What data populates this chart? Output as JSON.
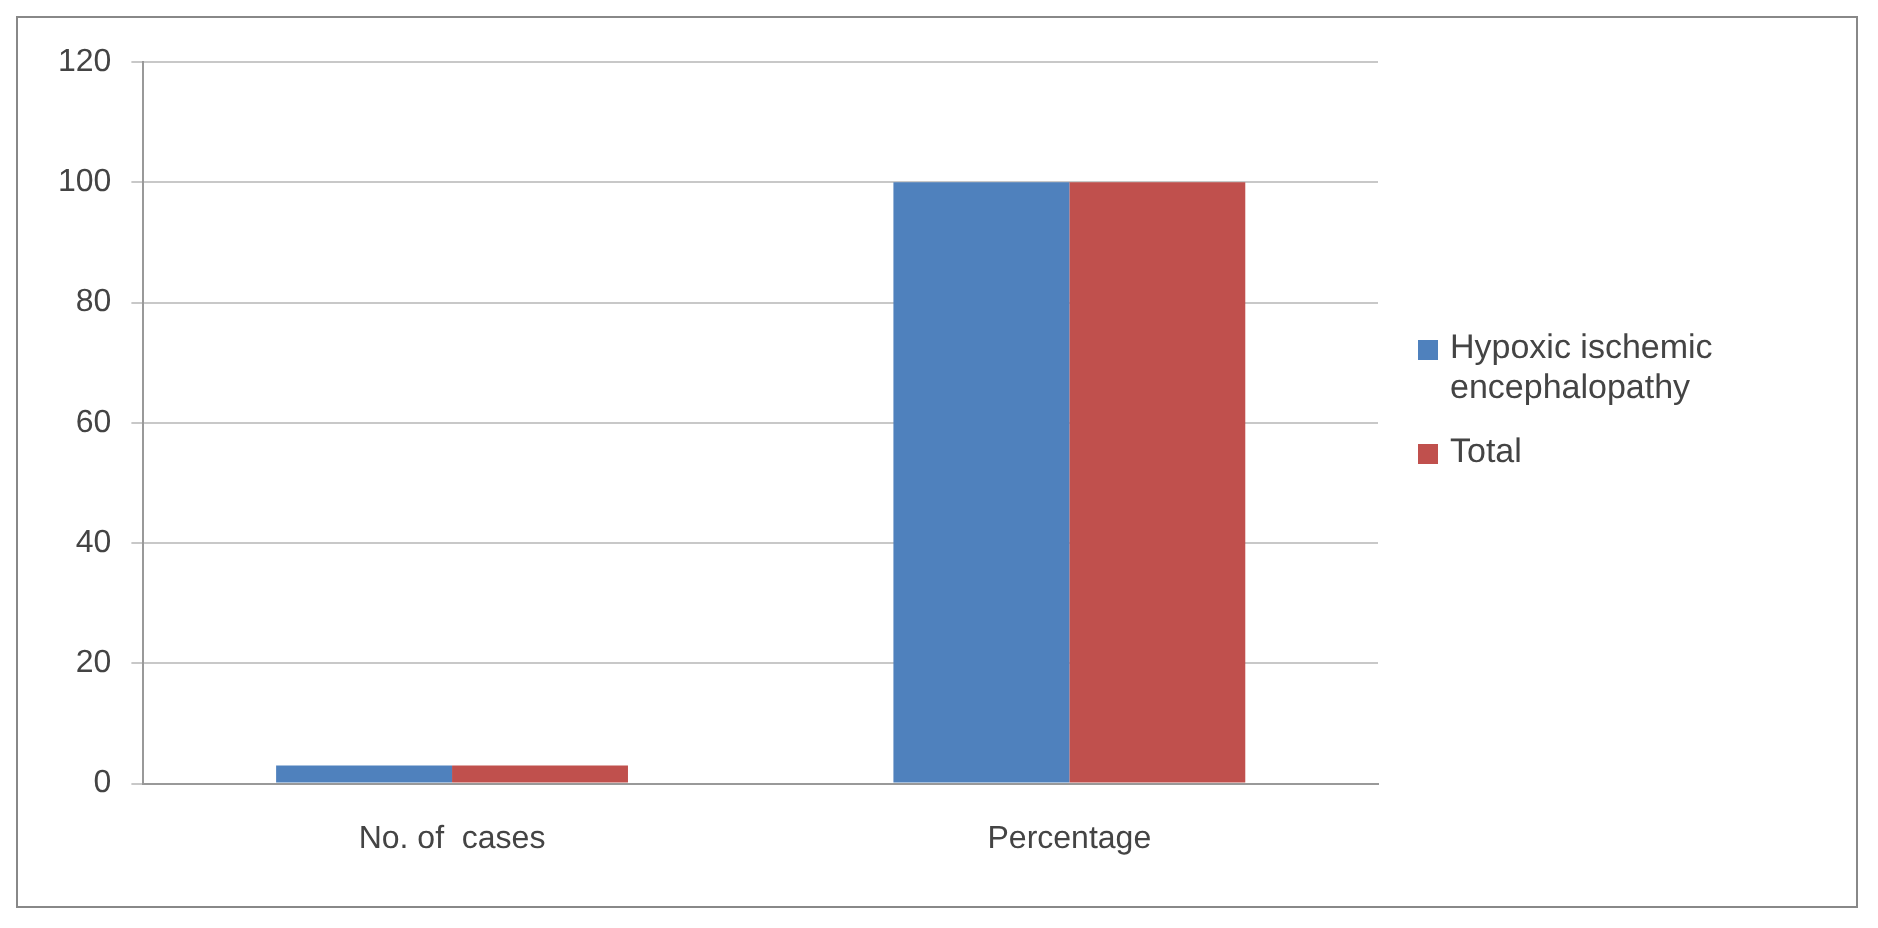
{
  "chart_data": {
    "type": "bar",
    "categories": [
      "No. of  cases",
      "Percentage"
    ],
    "series": [
      {
        "name": "Hypoxic ischemic encephalopathy",
        "color": "#4f81bd",
        "values": [
          3,
          100
        ]
      },
      {
        "name": "Total",
        "color": "#c0504d",
        "values": [
          3,
          100
        ]
      }
    ],
    "ylim": [
      0,
      120
    ],
    "yticks": [
      0,
      20,
      40,
      60,
      80,
      100,
      120
    ],
    "grid": "y",
    "legend": "right"
  }
}
